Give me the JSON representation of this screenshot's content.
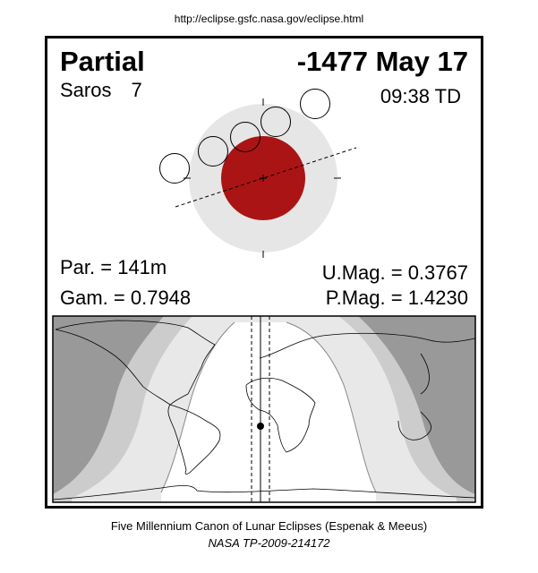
{
  "source_url": "http://eclipse.gsfc.nasa.gov/eclipse.html",
  "eclipse": {
    "type": "Partial",
    "date": "-1477 May 17",
    "saros_label": "Saros",
    "saros_number": "7",
    "time": "09:38 TD",
    "partial_duration": "Par. = 141m",
    "gamma": "Gam. = 0.7948",
    "umbral_magnitude": "U.Mag. = 0.3767",
    "penumbral_magnitude": "P.Mag. = 1.4230"
  },
  "colors": {
    "umbra": "#ab1414",
    "penumbra": "#e6e6e6",
    "map_night": "#999999",
    "map_band_1": "#cccccc",
    "map_band_2": "#e8e8e8",
    "map_day": "#ffffff"
  },
  "footer": {
    "line1": "Five Millennium Canon of Lunar Eclipses (Espenak & Meeus)",
    "line2": "NASA TP-2009-214172"
  }
}
